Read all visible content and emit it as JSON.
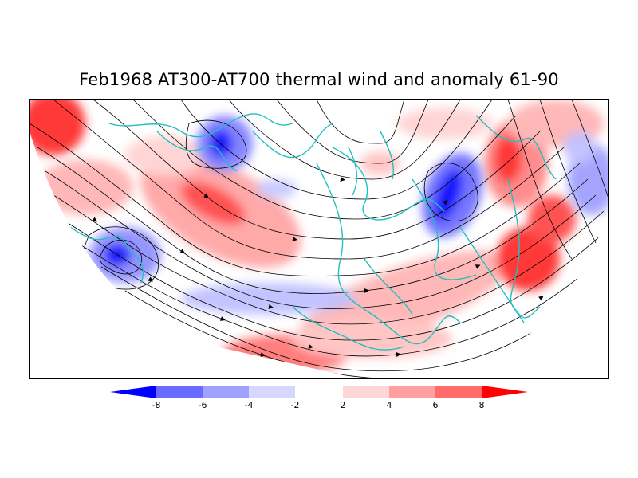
{
  "title": "Feb1968 AT300-AT700 thermal wind and anomaly 61-90",
  "colorbar": {
    "levels": [
      "-8",
      "-6",
      "-4",
      "-2",
      "2",
      "4",
      "6",
      "8"
    ],
    "colors": [
      "#0000ff",
      "#6a6aff",
      "#a0a0ff",
      "#d6d6ff",
      "#ffffff",
      "#ffd6d6",
      "#ffa0a0",
      "#ff6a6a",
      "#ff0000"
    ]
  },
  "colors": {
    "coastline": "#20c0c0",
    "streamline": "#000000",
    "frame": "#000000"
  }
}
